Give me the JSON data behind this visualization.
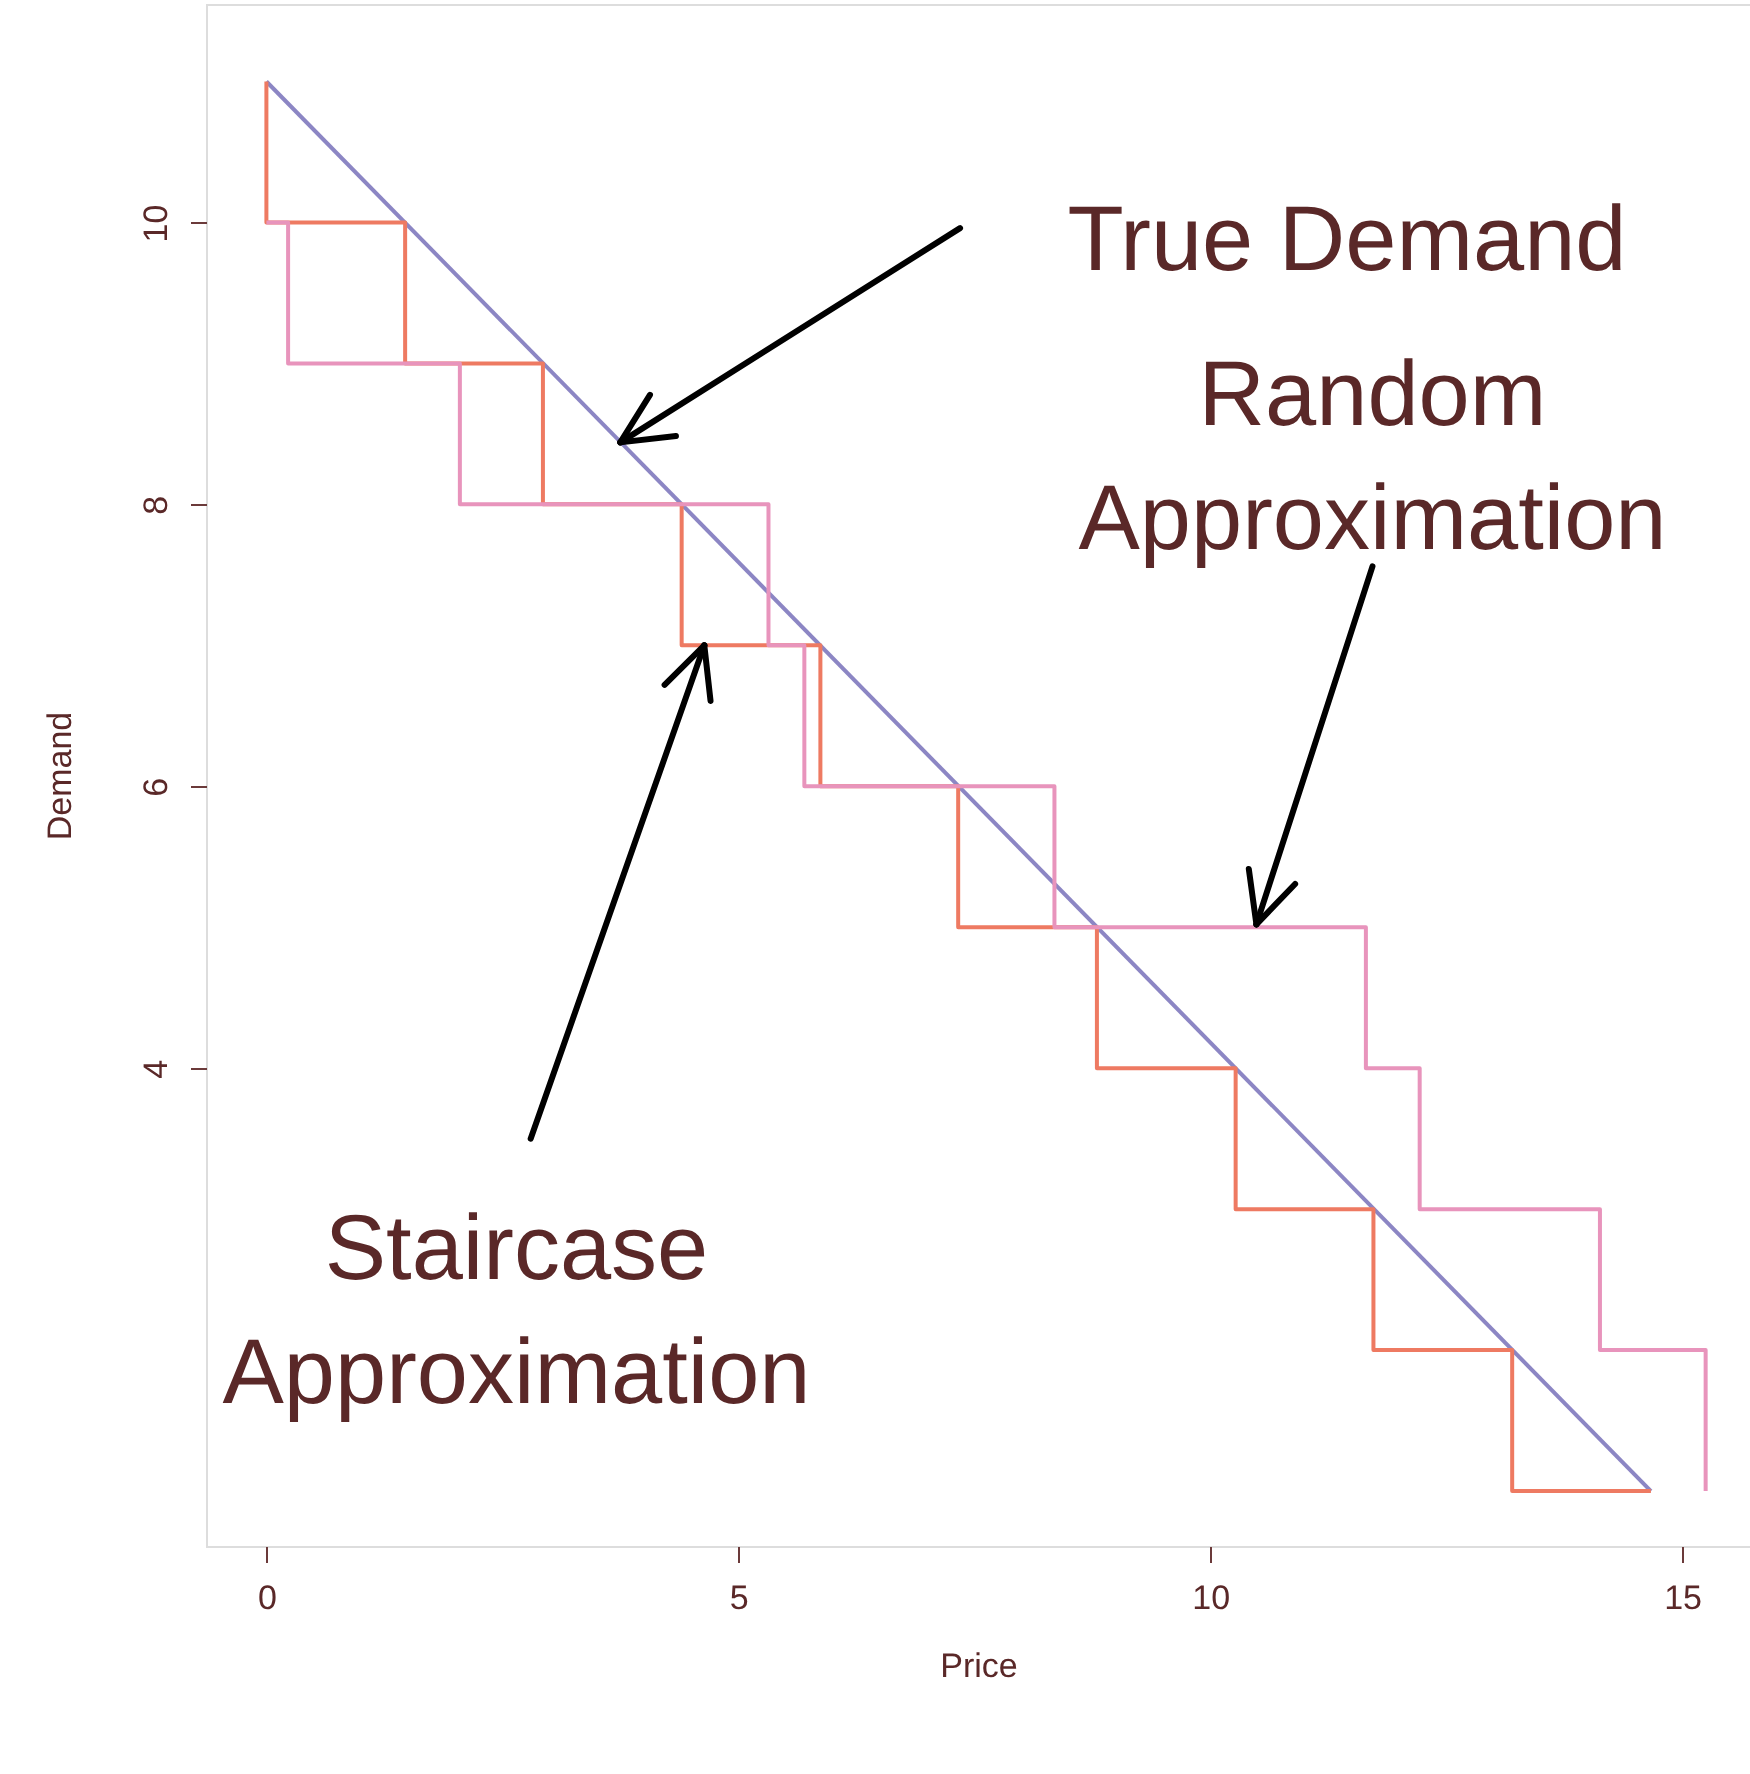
{
  "chart_data": {
    "type": "step",
    "xlabel": "Price",
    "ylabel": "Demand",
    "xlim": [
      -0.64,
      15.72
    ],
    "ylim": [
      0.61,
      11.55
    ],
    "xticks": [
      0,
      5,
      10,
      15
    ],
    "yticks": [
      4,
      6,
      8,
      10
    ],
    "grid": false,
    "series": [
      {
        "type": "line",
        "color": "#8c86c4",
        "x": [
          0,
          14.67
        ],
        "values": [
          11,
          1
        ]
      },
      {
        "color": "#ee7a62",
        "x": [
          0,
          0,
          1.47,
          2.93,
          4.4,
          5.87,
          7.33,
          8.8,
          10.27,
          11.73,
          13.2,
          14.67
        ],
        "values": [
          11,
          10,
          9,
          8,
          7,
          6,
          5,
          4,
          3,
          2,
          1,
          1
        ]
      },
      {
        "color": "#e894bc",
        "x": [
          0,
          0.23,
          2.05,
          5.32,
          5.7,
          8.35,
          11.65,
          12.22,
          14.13,
          15.25
        ],
        "values": [
          10,
          9,
          8,
          7,
          6,
          5,
          4,
          3,
          2,
          1
        ]
      }
    ],
    "annotations": [
      {
        "text": "True Demand",
        "x": 3.75,
        "y": 8.44
      },
      {
        "text": "Random\nApproximation",
        "x": 10.49,
        "y": 5.02
      },
      {
        "text": "Staircase\nApproximation",
        "x": 4.64,
        "y": 7.0
      }
    ]
  }
}
